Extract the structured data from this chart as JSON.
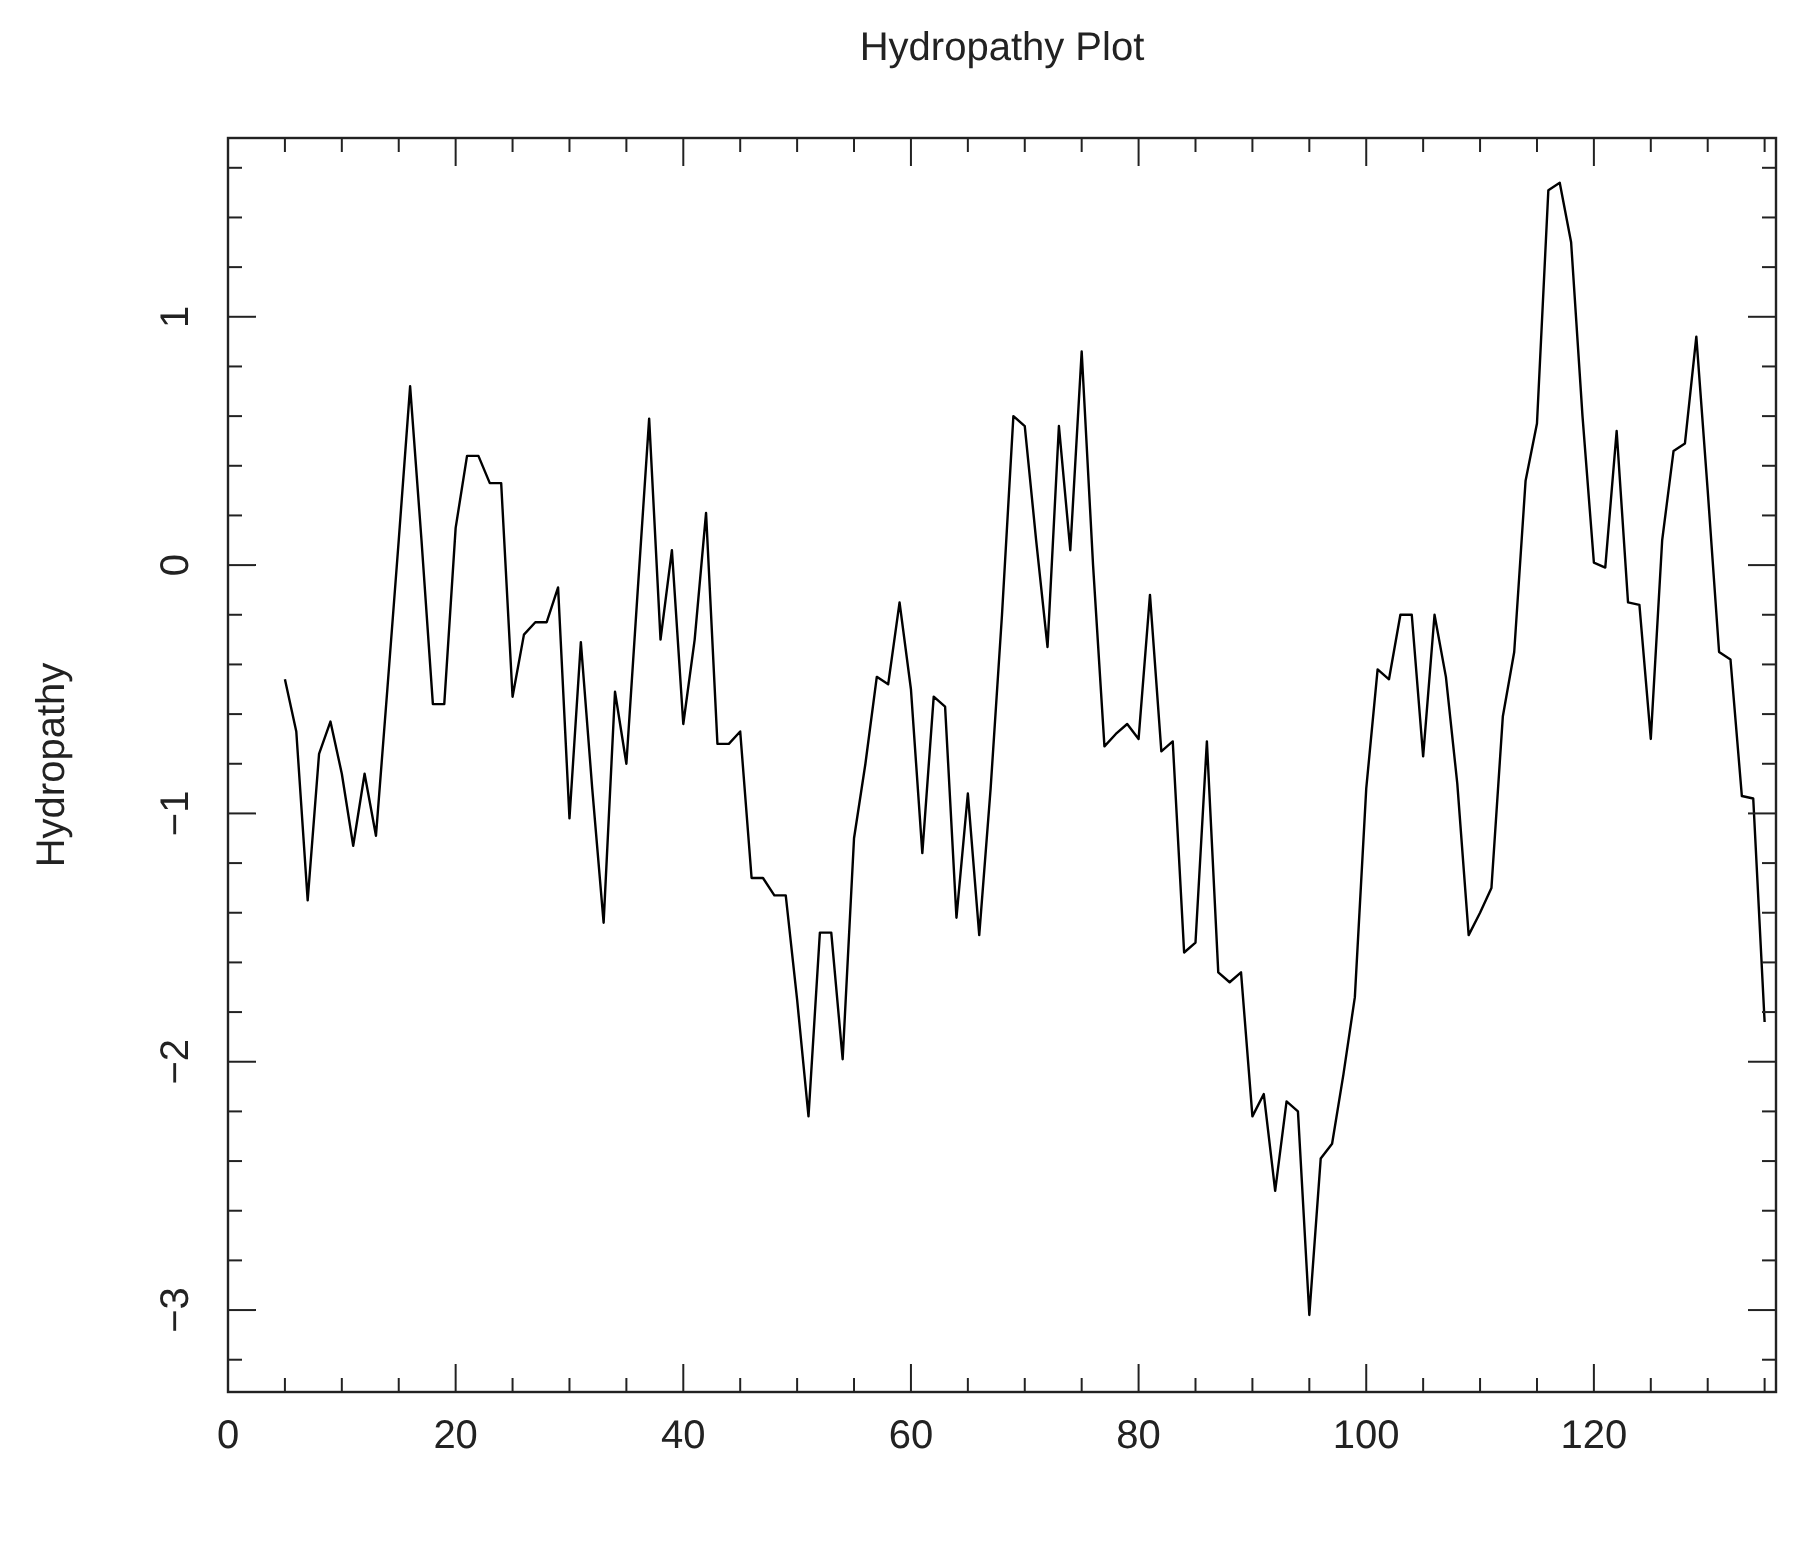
{
  "chart_data": {
    "type": "line",
    "title": "Hydropathy Plot",
    "ylabel": "Hydropathy",
    "xlim": [
      0,
      136
    ],
    "ylim": [
      -3.33,
      1.72
    ],
    "xticks": [
      0,
      {
        "value": 5,
        "label": null
      },
      {
        "value": 10,
        "label": null
      },
      {
        "value": 15,
        "label": null
      },
      20,
      {
        "value": 25,
        "label": null
      },
      {
        "value": 30,
        "label": null
      },
      {
        "value": 35,
        "label": null
      },
      40,
      {
        "value": 45,
        "label": null
      },
      {
        "value": 50,
        "label": null
      },
      {
        "value": 55,
        "label": null
      },
      60,
      {
        "value": 65,
        "label": null
      },
      {
        "value": 70,
        "label": null
      },
      {
        "value": 75,
        "label": null
      },
      80,
      {
        "value": 85,
        "label": null
      },
      {
        "value": 90,
        "label": null
      },
      {
        "value": 95,
        "label": null
      },
      100,
      {
        "value": 105,
        "label": null
      },
      {
        "value": 110,
        "label": null
      },
      {
        "value": 115,
        "label": null
      },
      120,
      {
        "value": 125,
        "label": null
      },
      {
        "value": 130,
        "label": null
      },
      {
        "value": 135,
        "label": null
      }
    ],
    "yticks": [
      {
        "value": -3.2,
        "label": null
      },
      -3,
      {
        "value": -2.8,
        "label": null
      },
      {
        "value": -2.6,
        "label": null
      },
      {
        "value": -2.4,
        "label": null
      },
      {
        "value": -2.2,
        "label": null
      },
      -2,
      {
        "value": -1.8,
        "label": null
      },
      {
        "value": -1.6,
        "label": null
      },
      {
        "value": -1.4,
        "label": null
      },
      {
        "value": -1.2,
        "label": null
      },
      -1,
      {
        "value": -0.8,
        "label": null
      },
      {
        "value": -0.6,
        "label": null
      },
      {
        "value": -0.4,
        "label": null
      },
      {
        "value": -0.2,
        "label": null
      },
      0,
      {
        "value": 0.2,
        "label": null
      },
      {
        "value": 0.4,
        "label": null
      },
      {
        "value": 0.6,
        "label": null
      },
      {
        "value": 0.8,
        "label": null
      },
      1,
      {
        "value": 1.2,
        "label": null
      },
      {
        "value": 1.4,
        "label": null
      },
      {
        "value": 1.6,
        "label": null
      }
    ],
    "x": [
      5,
      6,
      7,
      8,
      9,
      10,
      11,
      12,
      13,
      14,
      15,
      16,
      17,
      18,
      19,
      20,
      21,
      22,
      23,
      24,
      25,
      26,
      27,
      28,
      29,
      30,
      31,
      32,
      33,
      34,
      35,
      36,
      37,
      38,
      39,
      40,
      41,
      42,
      43,
      44,
      45,
      46,
      47,
      48,
      49,
      50,
      51,
      52,
      53,
      54,
      55,
      56,
      57,
      58,
      59,
      60,
      61,
      62,
      63,
      64,
      65,
      66,
      67,
      68,
      69,
      70,
      71,
      72,
      73,
      74,
      75,
      76,
      77,
      78,
      79,
      80,
      81,
      82,
      83,
      84,
      85,
      86,
      87,
      88,
      89,
      90,
      91,
      92,
      93,
      94,
      95,
      96,
      97,
      98,
      99,
      100,
      101,
      102,
      103,
      104,
      105,
      106,
      107,
      108,
      109,
      110,
      111,
      112,
      113,
      114,
      115,
      116,
      117,
      118,
      119,
      120,
      121,
      122,
      123,
      124,
      125,
      126,
      127,
      128,
      129,
      130,
      131,
      132,
      133,
      134,
      135
    ],
    "series": [
      {
        "color": "#000000",
        "values": [
          -0.46,
          -0.67,
          -1.35,
          -0.76,
          -0.63,
          -0.84,
          -1.13,
          -0.84,
          -1.09,
          -0.5,
          0.1,
          0.72,
          0.1,
          -0.56,
          -0.56,
          0.15,
          0.44,
          0.44,
          0.33,
          0.33,
          -0.53,
          -0.28,
          -0.23,
          -0.23,
          -0.09,
          -1.02,
          -0.31,
          -0.9,
          -1.44,
          -0.51,
          -0.8,
          -0.1,
          0.59,
          -0.3,
          0.06,
          -0.64,
          -0.3,
          0.21,
          -0.72,
          -0.72,
          -0.67,
          -1.26,
          -1.26,
          -1.33,
          -1.33,
          -1.75,
          -2.22,
          -1.48,
          -1.48,
          -1.99,
          -1.1,
          -0.8,
          -0.45,
          -0.48,
          -0.15,
          -0.5,
          -1.16,
          -0.53,
          -0.57,
          -1.42,
          -0.92,
          -1.49,
          -0.9,
          -0.2,
          0.6,
          0.56,
          0.1,
          -0.33,
          0.56,
          0.06,
          0.86,
          0,
          -0.73,
          -0.68,
          -0.64,
          -0.7,
          -0.12,
          -0.75,
          -0.71,
          -1.56,
          -1.52,
          -0.71,
          -1.64,
          -1.68,
          -1.64,
          -2.22,
          -2.13,
          -2.52,
          -2.16,
          -2.2,
          -3.02,
          -2.39,
          -2.33,
          -2.05,
          -1.74,
          -0.9,
          -0.42,
          -0.46,
          -0.2,
          -0.2,
          -0.77,
          -0.2,
          -0.45,
          -0.88,
          -1.49,
          -1.4,
          -1.3,
          -0.61,
          -0.35,
          0.34,
          0.57,
          1.51,
          1.54,
          1.3,
          0.6,
          0.01,
          -0.01,
          0.54,
          -0.15,
          -0.16,
          -0.7,
          0.1,
          0.46,
          0.49,
          0.92,
          0.3,
          -0.35,
          -0.38,
          -0.93,
          -0.94,
          -1.84
        ]
      }
    ]
  }
}
